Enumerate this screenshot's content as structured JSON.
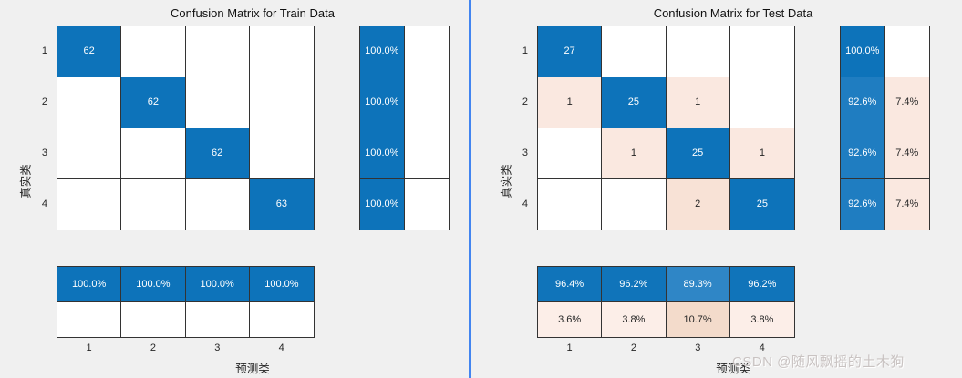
{
  "page": {
    "background": "#f0f0f0",
    "divider_color": "#4285f0"
  },
  "watermark": {
    "text": "CSDN @随风飘摇的土木狗",
    "color": "#c9c3c2"
  },
  "palette": {
    "diagonal_blue": "#0d73ba",
    "summary_blue": "#1074ba",
    "medium_blue": "#1f7dc1",
    "light_blue": "#2f86c6",
    "pink": "#fae8e0",
    "pink_strong": "#f8e2d6",
    "pale_pink": "#fceee8",
    "deep_pink": "#f3dbcb",
    "text_dark": "#262626",
    "text_light": "#ffffff"
  },
  "chart_data": [
    {
      "type": "heatmap",
      "title": "Confusion Matrix for Train Data",
      "xlabel": "预测类",
      "ylabel": "真实类",
      "classes": [
        "1",
        "2",
        "3",
        "4"
      ],
      "matrix": [
        [
          62,
          0,
          0,
          0
        ],
        [
          0,
          62,
          0,
          0
        ],
        [
          0,
          0,
          62,
          0
        ],
        [
          0,
          0,
          0,
          63
        ]
      ],
      "cells": [
        [
          {
            "text": "62",
            "bg": "#0d73ba",
            "fg": "#ffffff"
          },
          {
            "bg": "#ffffff"
          },
          {
            "bg": "#ffffff"
          },
          {
            "bg": "#ffffff"
          }
        ],
        [
          {
            "bg": "#ffffff"
          },
          {
            "text": "62",
            "bg": "#0d73ba",
            "fg": "#ffffff"
          },
          {
            "bg": "#ffffff"
          },
          {
            "bg": "#ffffff"
          }
        ],
        [
          {
            "bg": "#ffffff"
          },
          {
            "bg": "#ffffff"
          },
          {
            "text": "62",
            "bg": "#0d73ba",
            "fg": "#ffffff"
          },
          {
            "bg": "#ffffff"
          }
        ],
        [
          {
            "bg": "#ffffff"
          },
          {
            "bg": "#ffffff"
          },
          {
            "bg": "#ffffff"
          },
          {
            "text": "63",
            "bg": "#0d73ba",
            "fg": "#ffffff"
          }
        ]
      ],
      "row_summary": [
        [
          {
            "text": "100.0%",
            "bg": "#0d73ba",
            "fg": "#ffffff"
          },
          {
            "bg": "#ffffff"
          }
        ],
        [
          {
            "text": "100.0%",
            "bg": "#0d73ba",
            "fg": "#ffffff"
          },
          {
            "bg": "#ffffff"
          }
        ],
        [
          {
            "text": "100.0%",
            "bg": "#0d73ba",
            "fg": "#ffffff"
          },
          {
            "bg": "#ffffff"
          }
        ],
        [
          {
            "text": "100.0%",
            "bg": "#0d73ba",
            "fg": "#ffffff"
          },
          {
            "bg": "#ffffff"
          }
        ]
      ],
      "col_summary": [
        [
          {
            "text": "100.0%",
            "bg": "#0d73ba",
            "fg": "#ffffff"
          },
          {
            "text": "100.0%",
            "bg": "#0d73ba",
            "fg": "#ffffff"
          },
          {
            "text": "100.0%",
            "bg": "#0d73ba",
            "fg": "#ffffff"
          },
          {
            "text": "100.0%",
            "bg": "#0d73ba",
            "fg": "#ffffff"
          }
        ],
        [
          {
            "bg": "#ffffff"
          },
          {
            "bg": "#ffffff"
          },
          {
            "bg": "#ffffff"
          },
          {
            "bg": "#ffffff"
          }
        ]
      ]
    },
    {
      "type": "heatmap",
      "title": "Confusion Matrix for Test Data",
      "xlabel": "预测类",
      "ylabel": "真实类",
      "classes": [
        "1",
        "2",
        "3",
        "4"
      ],
      "matrix": [
        [
          27,
          0,
          0,
          0
        ],
        [
          1,
          25,
          1,
          0
        ],
        [
          0,
          1,
          25,
          1
        ],
        [
          0,
          0,
          2,
          25
        ]
      ],
      "cells": [
        [
          {
            "text": "27",
            "bg": "#0d73ba",
            "fg": "#ffffff"
          },
          {
            "bg": "#ffffff"
          },
          {
            "bg": "#ffffff"
          },
          {
            "bg": "#ffffff"
          }
        ],
        [
          {
            "text": "1",
            "bg": "#fae8e0"
          },
          {
            "text": "25",
            "bg": "#0d73ba",
            "fg": "#ffffff"
          },
          {
            "text": "1",
            "bg": "#fae8e0"
          },
          {
            "bg": "#ffffff"
          }
        ],
        [
          {
            "bg": "#ffffff"
          },
          {
            "text": "1",
            "bg": "#fae8e0"
          },
          {
            "text": "25",
            "bg": "#0d73ba",
            "fg": "#ffffff"
          },
          {
            "text": "1",
            "bg": "#fae8e0"
          }
        ],
        [
          {
            "bg": "#ffffff"
          },
          {
            "bg": "#ffffff"
          },
          {
            "text": "2",
            "bg": "#f8e2d6"
          },
          {
            "text": "25",
            "bg": "#0d73ba",
            "fg": "#ffffff"
          }
        ]
      ],
      "row_summary": [
        [
          {
            "text": "100.0%",
            "bg": "#0d73ba",
            "fg": "#ffffff"
          },
          {
            "bg": "#ffffff"
          }
        ],
        [
          {
            "text": "92.6%",
            "bg": "#1f7dc1",
            "fg": "#ffffff"
          },
          {
            "text": "7.4%",
            "bg": "#fae8e0"
          }
        ],
        [
          {
            "text": "92.6%",
            "bg": "#1f7dc1",
            "fg": "#ffffff"
          },
          {
            "text": "7.4%",
            "bg": "#fae8e0"
          }
        ],
        [
          {
            "text": "92.6%",
            "bg": "#1f7dc1",
            "fg": "#ffffff"
          },
          {
            "text": "7.4%",
            "bg": "#fae8e0"
          }
        ]
      ],
      "col_summary": [
        [
          {
            "text": "96.4%",
            "bg": "#1074ba",
            "fg": "#ffffff"
          },
          {
            "text": "96.2%",
            "bg": "#1074ba",
            "fg": "#ffffff"
          },
          {
            "text": "89.3%",
            "bg": "#2f86c6",
            "fg": "#ffffff"
          },
          {
            "text": "96.2%",
            "bg": "#1074ba",
            "fg": "#ffffff"
          }
        ],
        [
          {
            "text": "3.6%",
            "bg": "#fceee8"
          },
          {
            "text": "3.8%",
            "bg": "#fceee8"
          },
          {
            "text": "10.7%",
            "bg": "#f3dbcb"
          },
          {
            "text": "3.8%",
            "bg": "#fceee8"
          }
        ]
      ]
    }
  ]
}
